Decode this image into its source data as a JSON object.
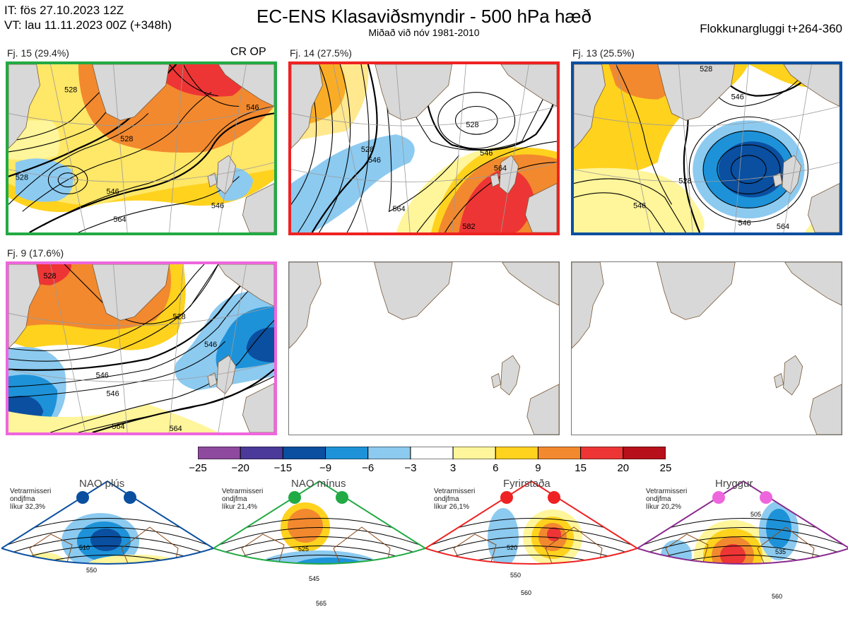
{
  "header": {
    "init": "IT: fös 27.10.2023 12Z",
    "valid": "VT: lau 11.11.2023 00Z  (+348h)",
    "title": "EC-ENS Klasaviðsmyndir - 500 hPa hæð",
    "subtitle": "Miðað við nóv 1981-2010",
    "window": "Flokkunargluggi t+264-360"
  },
  "panels": [
    {
      "label": "Fj. 15 (29.4%)",
      "border_color": "#22aa44",
      "tag": "CR OP"
    },
    {
      "label": "Fj. 14 (27.5%)",
      "border_color": "#ee2222"
    },
    {
      "label": "Fj. 13 (25.5%)",
      "border_color": "#0a4fa0"
    },
    {
      "label": "Fj. 9 (17.6%)",
      "border_color": "#ee66dd"
    }
  ],
  "contour_labels": {
    "p1": [
      "528",
      "528",
      "546",
      "546",
      "564",
      "546",
      "528"
    ],
    "p2": [
      "528",
      "546",
      "546",
      "564",
      "564",
      "528",
      "582"
    ],
    "p3": [
      "528",
      "528",
      "546",
      "546",
      "564",
      "546"
    ],
    "p4": [
      "528",
      "528",
      "546",
      "546",
      "564",
      "564",
      "546"
    ]
  },
  "colorbar": {
    "ticks": [
      "−25",
      "−20",
      "−15",
      "−9",
      "−6",
      "−3",
      "3",
      "6",
      "9",
      "15",
      "20",
      "25"
    ],
    "colors": [
      "#8e4a9e",
      "#4b3a9a",
      "#0a4fa0",
      "#1e92d8",
      "#8ccaf0",
      "#ffffff",
      "#fff59a",
      "#ffd21e",
      "#f2892e",
      "#ee3535",
      "#b8101a"
    ]
  },
  "regimes": [
    {
      "title": "NAO plús",
      "note": [
        "Vetrarmisseri",
        "ondjfma",
        "líkur 32,3%"
      ],
      "color": "#0a4fa0",
      "dot_color": "#0a4fa0",
      "contours": [
        "510",
        "550"
      ]
    },
    {
      "title": "NAO mínus",
      "note": [
        "Vetrarmisseri",
        "ondjfma",
        "líkur 21,4%"
      ],
      "color": "#22aa44",
      "dot_color": "#22aa44",
      "contours": [
        "525",
        "545",
        "565"
      ]
    },
    {
      "title": "Fyrirstaða",
      "note": [
        "Vetrarmisseri",
        "ondjfma",
        "líkur 26,1%"
      ],
      "color": "#ee2222",
      "dot_color": "#ee2222",
      "contours": [
        "520",
        "550",
        "560"
      ]
    },
    {
      "title": "Hryggur",
      "note": [
        "Vetrarmisseri",
        "ondjfma",
        "líkur 20,2%"
      ],
      "color": "#8a2a8e",
      "dot_color": "#ee66dd",
      "contours": [
        "505",
        "535",
        "560"
      ]
    }
  ]
}
